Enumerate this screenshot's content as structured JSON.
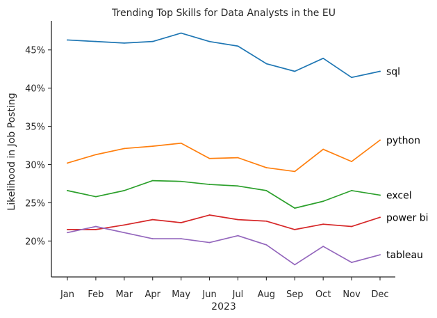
{
  "chart_data": {
    "type": "line",
    "title": "Trending Top Skills for Data Analysts in the EU",
    "xlabel": "2023",
    "ylabel": "Likelihood in Job Posting",
    "categories": [
      "Jan",
      "Feb",
      "Mar",
      "Apr",
      "May",
      "Jun",
      "Jul",
      "Aug",
      "Sep",
      "Oct",
      "Nov",
      "Dec"
    ],
    "ylim": [
      15.3,
      48.8
    ],
    "yticks": [
      20,
      25,
      30,
      35,
      40,
      45
    ],
    "ytick_labels": [
      "20%",
      "25%",
      "30%",
      "35%",
      "40%",
      "45%"
    ],
    "grid": false,
    "legend": "inline labels at line ends",
    "series": [
      {
        "name": "sql",
        "color": "#1f77b4",
        "values": [
          46.3,
          46.1,
          45.9,
          46.1,
          47.2,
          46.1,
          45.5,
          43.2,
          42.2,
          43.9,
          41.4,
          42.2
        ]
      },
      {
        "name": "python",
        "color": "#ff7f0e",
        "values": [
          30.2,
          31.3,
          32.1,
          32.4,
          32.8,
          30.8,
          30.9,
          29.6,
          29.1,
          32.0,
          30.4,
          33.2
        ]
      },
      {
        "name": "excel",
        "color": "#2ca02c",
        "values": [
          26.6,
          25.8,
          26.6,
          27.9,
          27.8,
          27.4,
          27.2,
          26.6,
          24.3,
          25.2,
          26.6,
          26.0
        ]
      },
      {
        "name": "power bi",
        "color": "#d62728",
        "values": [
          21.5,
          21.5,
          22.1,
          22.8,
          22.4,
          23.4,
          22.8,
          22.6,
          21.5,
          22.2,
          21.9,
          23.1
        ]
      },
      {
        "name": "tableau",
        "color": "#9467bd",
        "values": [
          21.1,
          21.9,
          21.1,
          20.3,
          20.3,
          19.8,
          20.7,
          19.5,
          16.9,
          19.3,
          17.2,
          18.2
        ]
      }
    ]
  }
}
